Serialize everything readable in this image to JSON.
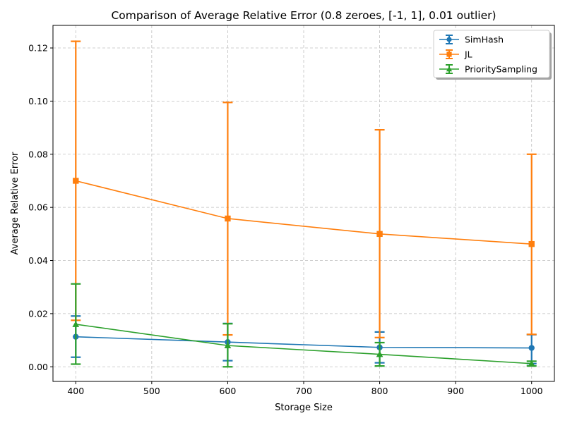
{
  "chart_data": {
    "type": "line",
    "title": "Comparison of Average Relative Error (0.8 zeroes, [-1, 1], 0.01 outlier)",
    "xlabel": "Storage Size",
    "ylabel": "Average Relative Error",
    "xlim": [
      370,
      1030
    ],
    "ylim": [
      -0.0055,
      0.1285
    ],
    "x_ticks": [
      400,
      500,
      600,
      700,
      800,
      900,
      1000
    ],
    "x_tick_labels": [
      "400",
      "500",
      "600",
      "700",
      "800",
      "900",
      "1000"
    ],
    "y_ticks": [
      0.0,
      0.02,
      0.04,
      0.06,
      0.08,
      0.1,
      0.12
    ],
    "y_tick_labels": [
      "0.00",
      "0.02",
      "0.04",
      "0.06",
      "0.08",
      "0.10",
      "0.12"
    ],
    "grid": true,
    "legend_position": "top-right",
    "x": [
      400,
      600,
      800,
      1000
    ],
    "series": [
      {
        "name": "SimHash",
        "color": "#1f77b4",
        "marker": "circle",
        "values": [
          0.0113,
          0.0093,
          0.0073,
          0.0071
        ],
        "err_low": [
          0.0036,
          0.0023,
          0.0015,
          0.0012
        ],
        "err_high": [
          0.0191,
          0.0163,
          0.0131,
          0.0121
        ]
      },
      {
        "name": "JL",
        "color": "#ff7f0e",
        "marker": "square",
        "values": [
          0.07,
          0.0558,
          0.05,
          0.0462
        ],
        "err_low": [
          0.0175,
          0.012,
          0.011,
          0.0122
        ],
        "err_high": [
          0.1225,
          0.0995,
          0.0892,
          0.08
        ]
      },
      {
        "name": "PrioritySampling",
        "color": "#2ca02c",
        "marker": "triangle",
        "values": [
          0.016,
          0.008,
          0.0047,
          0.0012
        ],
        "err_low": [
          0.001,
          0.0,
          0.0003,
          0.0003
        ],
        "err_high": [
          0.0312,
          0.0162,
          0.0091,
          0.0021
        ]
      }
    ]
  }
}
